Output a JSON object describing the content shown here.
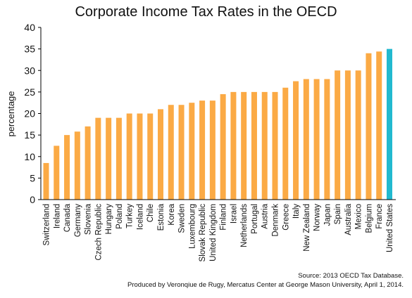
{
  "chart_data": {
    "type": "bar",
    "title": "Corporate Income Tax Rates in the OECD",
    "xlabel": "",
    "ylabel": "percentage",
    "ylim": [
      0,
      40
    ],
    "yticks": [
      0,
      5,
      10,
      15,
      20,
      25,
      30,
      35,
      40
    ],
    "grid": false,
    "legend": "none",
    "categories": [
      "Switzerland",
      "Ireland",
      "Canada",
      "Germany",
      "Slovenia",
      "Czech Republic",
      "Hungary",
      "Poland",
      "Turkey",
      "Iceland",
      "Chile",
      "Estonia",
      "Korea",
      "Sweden",
      "Luxembourg",
      "Slovak Republic",
      "United Kingdom",
      "Finland",
      "Israel",
      "Netherlands",
      "Portugal",
      "Austria",
      "Denmark",
      "Greece",
      "Italy",
      "New Zealand",
      "Norway",
      "Japan",
      "Spain",
      "Australia",
      "Mexico",
      "Belgium",
      "France",
      "United States"
    ],
    "values": [
      8.5,
      12.5,
      15,
      15.8,
      17,
      19,
      19,
      19,
      20,
      20,
      20,
      21,
      22,
      22,
      22.5,
      23,
      23,
      24.5,
      25,
      25,
      25,
      25,
      25,
      26,
      27.5,
      28,
      28,
      28,
      30,
      30,
      30,
      34,
      34.4,
      35
    ],
    "colors": {
      "default_bar": "#FBAA45",
      "highlight_bar": "#22B9CF",
      "highlight_category": "United States"
    }
  },
  "footer": {
    "source": "Source: 2013 OECD Tax Database.",
    "credit": "Produced by Veronqiue de Rugy, Mercatus Center at George Mason University, April 1, 2014."
  }
}
